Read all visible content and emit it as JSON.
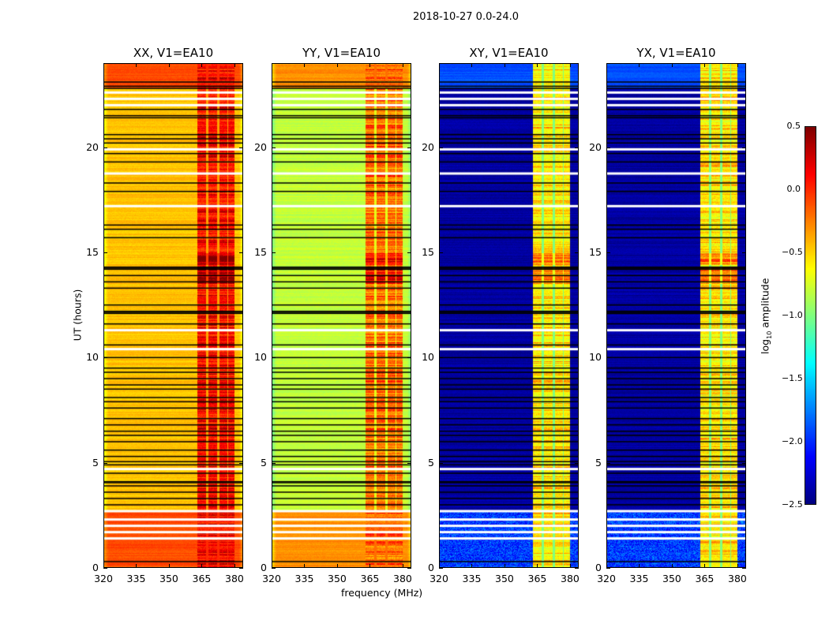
{
  "chart_data": {
    "type": "heatmap",
    "title": "2018-10-27 0.0-24.0",
    "xlabel": "frequency (MHz)",
    "ylabel": "UT (hours)",
    "xlim": [
      320,
      384
    ],
    "ylim": [
      0,
      24
    ],
    "xticks": [
      320,
      335,
      350,
      365,
      380
    ],
    "yticks": [
      0,
      5,
      10,
      15,
      20
    ],
    "colormap": "jet",
    "colorbar": {
      "label": "log",
      "label_sub": "10",
      "label_rest": " amplitude",
      "range": [
        -2.5,
        0.5
      ],
      "ticks": [
        "0.5",
        "0.0",
        "−0.5",
        "−1.0",
        "−1.5",
        "−2.0",
        "−2.5"
      ],
      "tick_values": [
        0.5,
        0.0,
        -0.5,
        -1.0,
        -1.5,
        -2.0,
        -2.5
      ]
    },
    "rfi_band_mhz": [
      363,
      380
    ],
    "rfi_columns_mhz": [
      [
        363,
        367
      ],
      [
        368,
        372
      ],
      [
        373,
        376.5
      ],
      [
        377,
        380
      ]
    ],
    "panels": [
      {
        "title": "XX, V1=EA10",
        "background_level": -0.45,
        "early_level": -0.1,
        "late_level": -0.1,
        "rfi_level": 0.05
      },
      {
        "title": "YY, V1=EA10",
        "background_level": -0.8,
        "early_level": -0.3,
        "late_level": -0.3,
        "rfi_level": -0.25
      },
      {
        "title": "XY, V1=EA10",
        "background_level": -2.4,
        "early_level": -1.95,
        "late_level": -1.9,
        "rfi_level": -0.6
      },
      {
        "title": "YX, V1=EA10",
        "background_level": -2.4,
        "early_level": -1.95,
        "late_level": -1.9,
        "rfi_level": -0.6
      }
    ],
    "flagged_black_hours": [
      0.3,
      3.0,
      3.3,
      3.6,
      3.9,
      4.05,
      4.1,
      4.5,
      4.9,
      5.05,
      5.3,
      5.6,
      6.0,
      6.3,
      6.5,
      6.8,
      7.1,
      7.6,
      7.9,
      8.1,
      8.5,
      8.7,
      9.0,
      9.3,
      9.5,
      10.0,
      10.6,
      11.6,
      12.1,
      12.15,
      12.2,
      12.5,
      13.3,
      13.6,
      13.9,
      14.2,
      14.25,
      14.3,
      15.7,
      16.1,
      16.3,
      17.9,
      18.3,
      19.3,
      19.7,
      20.2,
      20.4,
      20.6,
      21.4,
      21.5,
      21.8,
      22.8,
      22.9,
      23.1
    ],
    "flagged_white_hours": [
      1.4,
      1.7,
      2.0,
      2.3,
      2.7,
      4.7,
      10.4,
      11.3,
      17.2,
      18.75,
      19.9,
      22.0,
      22.6,
      22.3
    ]
  }
}
